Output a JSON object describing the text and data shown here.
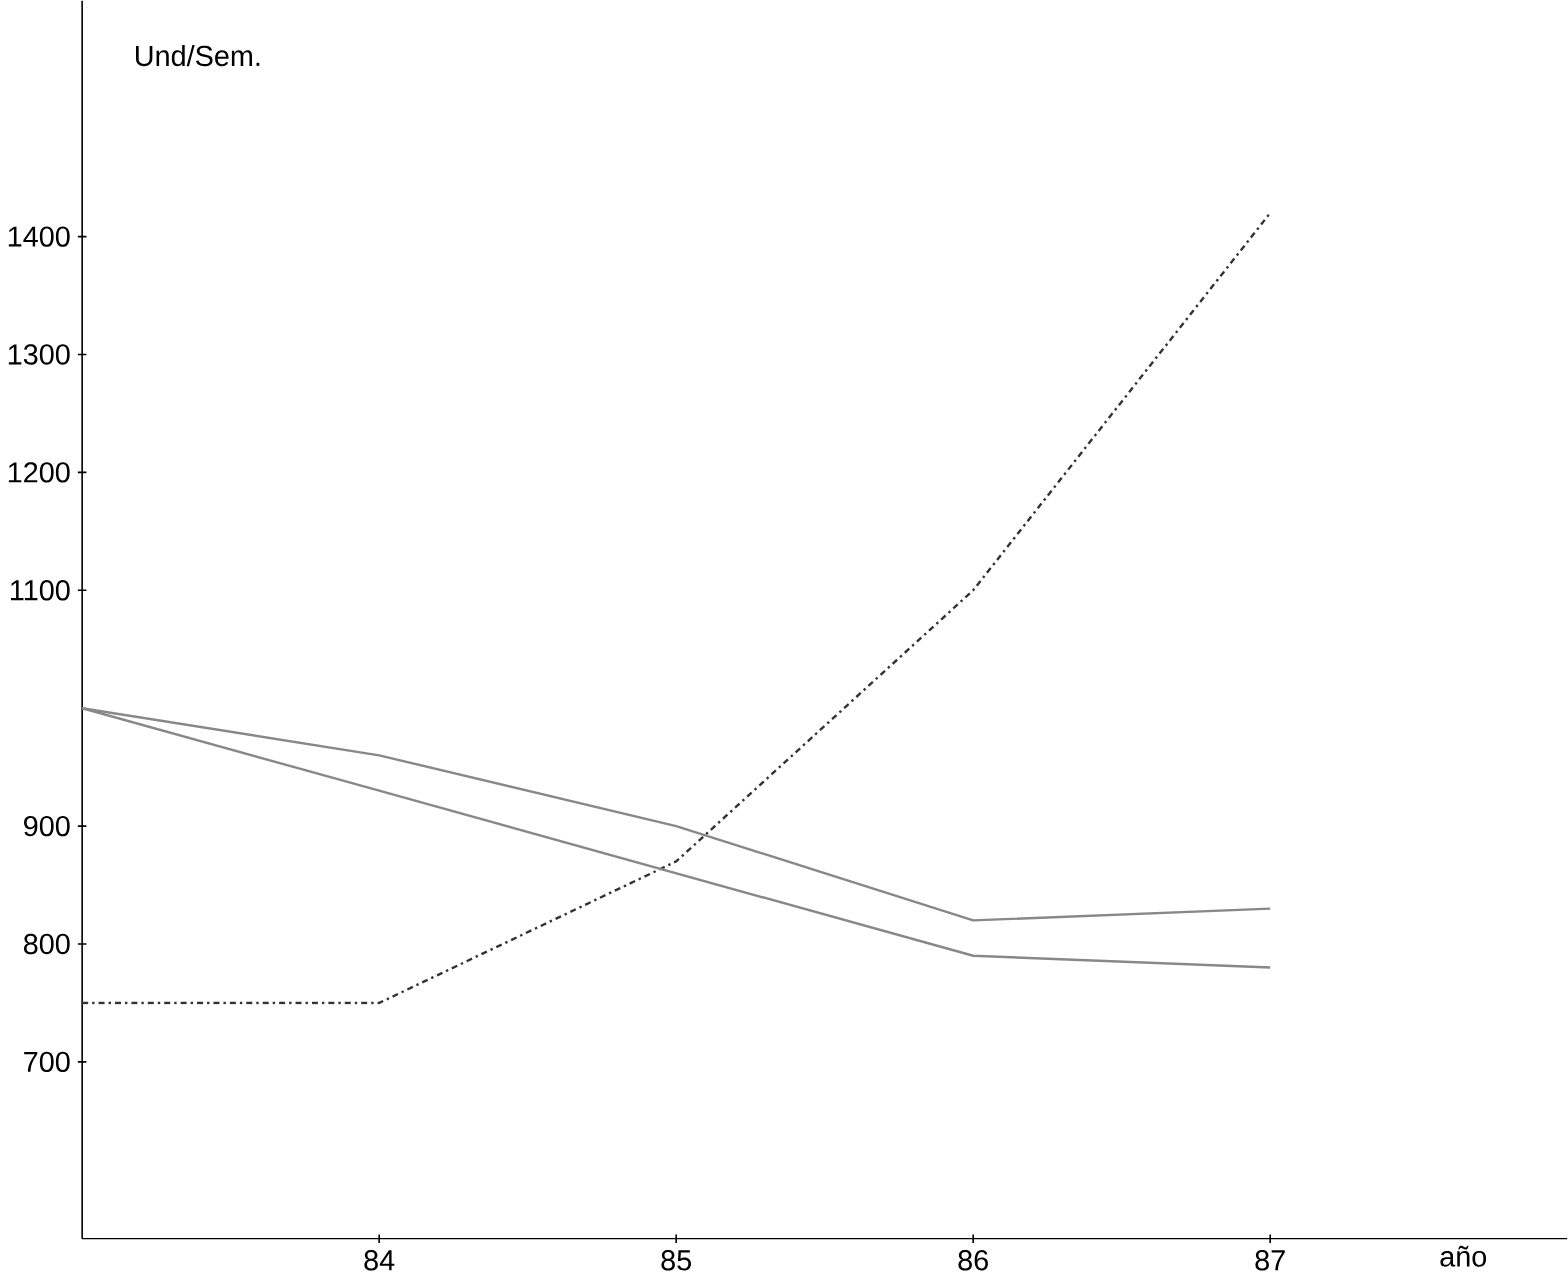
{
  "chart_data": {
    "type": "line",
    "xlabel": "año",
    "ylabel": "Und/Sem.",
    "x": [
      83,
      84,
      85,
      86,
      87
    ],
    "series": [
      {
        "color": "#333333",
        "values": [
          750,
          750,
          870,
          1100,
          1420
        ],
        "line_style": "dashed"
      },
      {
        "color": "#888888",
        "values": [
          1000,
          960,
          900,
          820,
          830
        ]
      },
      {
        "color": "#888888",
        "values": [
          1000,
          930,
          860,
          790,
          780
        ]
      }
    ],
    "xlim": [
      83,
      88
    ],
    "ylim": [
      550,
      1600
    ],
    "xticks": [
      84,
      85,
      86,
      87
    ],
    "yticks": [
      700,
      800,
      900,
      1100,
      1200,
      1300,
      1400
    ],
    "grid": false,
    "marker": "none"
  }
}
